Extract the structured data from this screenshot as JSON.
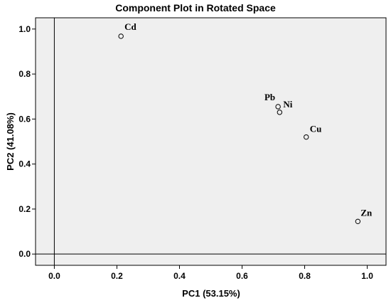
{
  "chart_data": {
    "type": "scatter",
    "title": "Component Plot in Rotated Space",
    "xlabel": "PC1 (53.15%)",
    "ylabel": "PC2 (41.08%)",
    "xlim": [
      -0.06,
      1.06
    ],
    "ylim": [
      -0.05,
      1.05
    ],
    "xticks": [
      0.0,
      0.2,
      0.4,
      0.6,
      0.8,
      1.0
    ],
    "xtick_labels": [
      "0.0",
      "0.2",
      "0.4",
      "0.6",
      "0.8",
      "1.0"
    ],
    "yticks": [
      0.0,
      0.2,
      0.4,
      0.6,
      0.8,
      1.0
    ],
    "ytick_labels": [
      "0.0",
      "0.2",
      "0.4",
      "0.6",
      "0.8",
      "1.0"
    ],
    "reference_lines": {
      "x": 0.0,
      "y": 0.0
    },
    "grid": false,
    "points": [
      {
        "label": "Cd",
        "x": 0.213,
        "y": 0.968
      },
      {
        "label": "Pb",
        "x": 0.715,
        "y": 0.655
      },
      {
        "label": "Ni",
        "x": 0.72,
        "y": 0.63
      },
      {
        "label": "Cu",
        "x": 0.805,
        "y": 0.52
      },
      {
        "label": "Zn",
        "x": 0.97,
        "y": 0.145
      }
    ]
  }
}
